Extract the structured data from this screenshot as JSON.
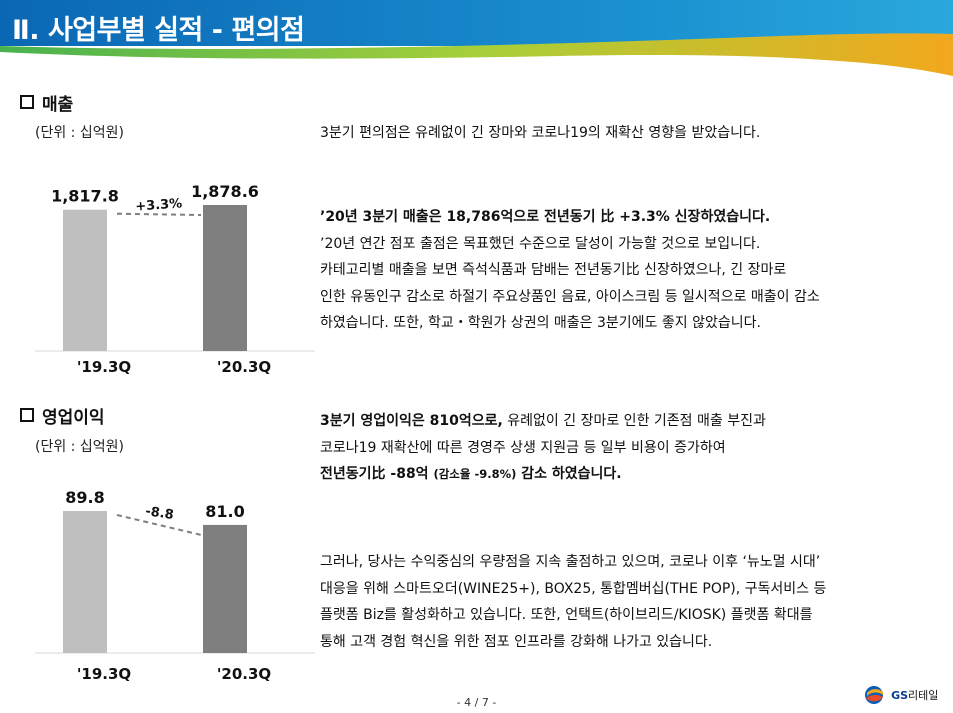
{
  "header": {
    "title": "Ⅱ. 사업부별 실적 - 편의점"
  },
  "sales": {
    "title": "매출",
    "unit": "(단위 : 십억원)",
    "chart_data": {
      "type": "bar",
      "categories": [
        "'19.3Q",
        "'20.3Q"
      ],
      "values": [
        1817.8,
        1878.6
      ],
      "value_labels": [
        "1,817.8",
        "1,878.6"
      ],
      "delta_label": "+3.3%",
      "colors": [
        "#bfbfbf",
        "#7f7f7f"
      ]
    }
  },
  "op_income": {
    "title": "영업이익",
    "unit": "(단위 : 십억원)",
    "chart_data": {
      "type": "bar",
      "categories": [
        "'19.3Q",
        "'20.3Q"
      ],
      "values": [
        89.8,
        81.0
      ],
      "value_labels": [
        "89.8",
        "81.0"
      ],
      "delta_label": "-8.8",
      "colors": [
        "#bfbfbf",
        "#7f7f7f"
      ]
    }
  },
  "text": {
    "p1": "3분기 편의점은 유례없이 긴 장마와 코로나19의 재확산 영향을 받았습니다.",
    "p2_l1": "’20년 3분기 매출은 18,786억으로 전년동기 比 +3.3% 신장하였습니다.",
    "p2_l2": "’20년 연간 점포 출점은 목표했던 수준으로 달성이 가능할 것으로 보입니다.",
    "p2_l3": "카테고리별 매출을 보면 즉석식품과 담배는 전년동기比 신장하였으나, 긴 장마로",
    "p2_l4": "인한 유동인구 감소로 하절기 주요상품인 음료, 아이스크림 등 일시적으로 매출이 감소",
    "p2_l5": "하였습니다.  또한, 학교・학원가 상권의 매출은 3분기에도 좋지 않았습니다.",
    "p3_l1_bold": "3분기 영업이익은 810억으로,",
    "p3_l1_rest": " 유례없이 긴 장마로 인한 기존점 매출 부진과",
    "p3_l2": "코로나19 재확산에 따른 경영주 상생 지원금 등 일부 비용이 증가하여",
    "p3_l3_a": "전년동기比 -88억 ",
    "p3_l3_small": "(감소율 -9.8%)",
    "p3_l3_b": " 감소 하였습니다.",
    "p4_l1": "그러나, 당사는 수익중심의 우량점을 지속 출점하고 있으며, 코로나 이후 ‘뉴노멀 시대’",
    "p4_l2": "대응을 위해 스마트오더(WINE25+), BOX25, 통합멤버십(THE POP), 구독서비스 등",
    "p4_l3": "플랫폼 Biz를 활성화하고 있습니다. 또한, 언택트(하이브리드/KIOSK) 플랫폼 확대를",
    "p4_l4": "통해 고객 경험 혁신을 위한 점포 인프라를 강화해 나가고 있습니다."
  },
  "footer": {
    "page": "- 4 / 7 -",
    "logo_gs": "GS",
    "logo_name": "리테일"
  }
}
